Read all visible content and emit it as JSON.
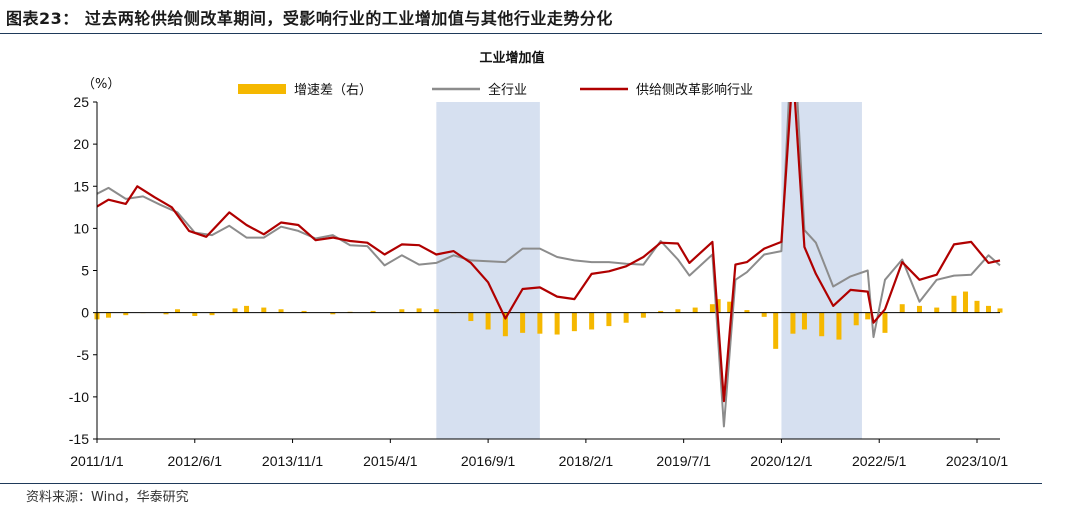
{
  "figure": {
    "title": "图表23：  过去两轮供给侧改革期间，受影响行业的工业增加值与其他行业走势分化",
    "source": "资料来源：Wind，华泰研究"
  },
  "chart_data": {
    "type": "line",
    "title": "工业增加值",
    "y_unit": "（%）",
    "ylim": [
      -15,
      25
    ],
    "yticks": [
      -15,
      -10,
      -5,
      0,
      5,
      10,
      15,
      20,
      25
    ],
    "x_tick_labels": [
      "2011/1/1",
      "2012/6/1",
      "2013/11/1",
      "2015/4/1",
      "2016/9/1",
      "2018/2/1",
      "2019/7/1",
      "2020/12/1",
      "2022/5/1",
      "2023/10/1"
    ],
    "x_range": [
      "2011-01",
      "2024-02"
    ],
    "grid": false,
    "legend_position": "top",
    "shaded_periods": [
      {
        "start": "2015-12",
        "end": "2017-06"
      },
      {
        "start": "2020-12",
        "end": "2022-02"
      }
    ],
    "series": [
      {
        "name": "增速差（右）",
        "kind": "bar",
        "color": "#F5B800",
        "points": [
          [
            "2011-01",
            -0.8
          ],
          [
            "2011-03",
            -0.6
          ],
          [
            "2011-06",
            -0.3
          ],
          [
            "2011-09",
            0.0
          ],
          [
            "2012-01",
            -0.2
          ],
          [
            "2012-03",
            0.4
          ],
          [
            "2012-06",
            -0.4
          ],
          [
            "2012-09",
            -0.3
          ],
          [
            "2013-01",
            0.5
          ],
          [
            "2013-03",
            0.8
          ],
          [
            "2013-06",
            0.6
          ],
          [
            "2013-09",
            0.4
          ],
          [
            "2014-01",
            0.2
          ],
          [
            "2014-06",
            -0.2
          ],
          [
            "2014-09",
            0.1
          ],
          [
            "2015-01",
            0.2
          ],
          [
            "2015-06",
            0.4
          ],
          [
            "2015-09",
            0.5
          ],
          [
            "2015-12",
            0.4
          ],
          [
            "2016-03",
            0.0
          ],
          [
            "2016-06",
            -1.0
          ],
          [
            "2016-09",
            -2.0
          ],
          [
            "2016-12",
            -2.8
          ],
          [
            "2017-03",
            -2.4
          ],
          [
            "2017-06",
            -2.5
          ],
          [
            "2017-09",
            -2.6
          ],
          [
            "2017-12",
            -2.2
          ],
          [
            "2018-03",
            -2.0
          ],
          [
            "2018-06",
            -1.6
          ],
          [
            "2018-09",
            -1.2
          ],
          [
            "2018-12",
            -0.6
          ],
          [
            "2019-03",
            0.2
          ],
          [
            "2019-06",
            0.4
          ],
          [
            "2019-09",
            0.6
          ],
          [
            "2019-12",
            1.0
          ],
          [
            "2020-01",
            1.6
          ],
          [
            "2020-03",
            1.3
          ],
          [
            "2020-06",
            0.3
          ],
          [
            "2020-09",
            -0.5
          ],
          [
            "2020-11",
            -4.3
          ],
          [
            "2021-02",
            -2.5
          ],
          [
            "2021-04",
            -2.0
          ],
          [
            "2021-07",
            -2.8
          ],
          [
            "2021-10",
            -3.2
          ],
          [
            "2022-01",
            -1.5
          ],
          [
            "2022-03",
            -0.8
          ],
          [
            "2022-06",
            -2.4
          ],
          [
            "2022-09",
            1.0
          ],
          [
            "2022-12",
            0.8
          ],
          [
            "2023-03",
            0.6
          ],
          [
            "2023-06",
            2.0
          ],
          [
            "2023-08",
            2.5
          ],
          [
            "2023-10",
            1.4
          ],
          [
            "2023-12",
            0.8
          ],
          [
            "2024-02",
            0.5
          ]
        ]
      },
      {
        "name": "全行业",
        "kind": "line",
        "color": "#8C8C8C",
        "points": [
          [
            "2011-01",
            14.1
          ],
          [
            "2011-03",
            14.8
          ],
          [
            "2011-06",
            13.5
          ],
          [
            "2011-09",
            13.8
          ],
          [
            "2011-12",
            12.8
          ],
          [
            "2012-03",
            11.9
          ],
          [
            "2012-06",
            9.5
          ],
          [
            "2012-09",
            9.2
          ],
          [
            "2012-12",
            10.3
          ],
          [
            "2013-03",
            8.9
          ],
          [
            "2013-06",
            8.9
          ],
          [
            "2013-09",
            10.2
          ],
          [
            "2013-12",
            9.7
          ],
          [
            "2014-03",
            8.8
          ],
          [
            "2014-06",
            9.2
          ],
          [
            "2014-09",
            8.0
          ],
          [
            "2014-12",
            7.9
          ],
          [
            "2015-03",
            5.6
          ],
          [
            "2015-06",
            6.8
          ],
          [
            "2015-09",
            5.7
          ],
          [
            "2015-12",
            5.9
          ],
          [
            "2016-03",
            6.8
          ],
          [
            "2016-06",
            6.2
          ],
          [
            "2016-09",
            6.1
          ],
          [
            "2016-12",
            6.0
          ],
          [
            "2017-03",
            7.6
          ],
          [
            "2017-06",
            7.6
          ],
          [
            "2017-09",
            6.6
          ],
          [
            "2017-12",
            6.2
          ],
          [
            "2018-03",
            6.0
          ],
          [
            "2018-06",
            6.0
          ],
          [
            "2018-09",
            5.8
          ],
          [
            "2018-12",
            5.7
          ],
          [
            "2019-03",
            8.5
          ],
          [
            "2019-06",
            6.3
          ],
          [
            "2019-08",
            4.4
          ],
          [
            "2019-12",
            6.9
          ],
          [
            "2020-02",
            -13.5
          ],
          [
            "2020-04",
            3.9
          ],
          [
            "2020-06",
            4.8
          ],
          [
            "2020-09",
            6.9
          ],
          [
            "2020-12",
            7.3
          ],
          [
            "2021-02",
            35.1
          ],
          [
            "2021-04",
            9.8
          ],
          [
            "2021-06",
            8.3
          ],
          [
            "2021-09",
            3.1
          ],
          [
            "2021-12",
            4.3
          ],
          [
            "2022-03",
            5.0
          ],
          [
            "2022-04",
            -2.9
          ],
          [
            "2022-06",
            3.9
          ],
          [
            "2022-09",
            6.3
          ],
          [
            "2022-12",
            1.3
          ],
          [
            "2023-03",
            3.9
          ],
          [
            "2023-06",
            4.4
          ],
          [
            "2023-09",
            4.5
          ],
          [
            "2023-12",
            6.8
          ],
          [
            "2024-02",
            5.6
          ]
        ]
      },
      {
        "name": "供给侧改革影响行业",
        "kind": "line",
        "color": "#B00000",
        "points": [
          [
            "2011-01",
            12.6
          ],
          [
            "2011-03",
            13.4
          ],
          [
            "2011-06",
            12.9
          ],
          [
            "2011-08",
            15.0
          ],
          [
            "2011-11",
            13.7
          ],
          [
            "2012-02",
            12.5
          ],
          [
            "2012-05",
            9.7
          ],
          [
            "2012-08",
            9.0
          ],
          [
            "2012-12",
            11.9
          ],
          [
            "2013-03",
            10.4
          ],
          [
            "2013-06",
            9.3
          ],
          [
            "2013-09",
            10.7
          ],
          [
            "2013-12",
            10.4
          ],
          [
            "2014-03",
            8.6
          ],
          [
            "2014-06",
            8.9
          ],
          [
            "2014-09",
            8.5
          ],
          [
            "2014-12",
            8.3
          ],
          [
            "2015-03",
            6.9
          ],
          [
            "2015-06",
            8.1
          ],
          [
            "2015-09",
            8.0
          ],
          [
            "2015-12",
            6.9
          ],
          [
            "2016-03",
            7.3
          ],
          [
            "2016-06",
            5.9
          ],
          [
            "2016-09",
            3.6
          ],
          [
            "2016-12",
            -0.7
          ],
          [
            "2017-03",
            2.8
          ],
          [
            "2017-06",
            3.0
          ],
          [
            "2017-09",
            1.9
          ],
          [
            "2017-12",
            1.6
          ],
          [
            "2018-03",
            4.6
          ],
          [
            "2018-06",
            4.9
          ],
          [
            "2018-09",
            5.5
          ],
          [
            "2018-12",
            6.6
          ],
          [
            "2019-03",
            8.3
          ],
          [
            "2019-06",
            8.2
          ],
          [
            "2019-08",
            5.9
          ],
          [
            "2019-12",
            8.4
          ],
          [
            "2020-02",
            -10.5
          ],
          [
            "2020-04",
            5.7
          ],
          [
            "2020-06",
            6.0
          ],
          [
            "2020-09",
            7.6
          ],
          [
            "2020-12",
            8.4
          ],
          [
            "2021-02",
            28.9
          ],
          [
            "2021-04",
            7.8
          ],
          [
            "2021-06",
            4.6
          ],
          [
            "2021-09",
            0.8
          ],
          [
            "2021-12",
            2.7
          ],
          [
            "2022-03",
            2.5
          ],
          [
            "2022-04",
            -1.2
          ],
          [
            "2022-06",
            0.4
          ],
          [
            "2022-09",
            6.0
          ],
          [
            "2022-12",
            3.9
          ],
          [
            "2023-03",
            4.5
          ],
          [
            "2023-06",
            8.1
          ],
          [
            "2023-09",
            8.4
          ],
          [
            "2023-12",
            5.9
          ],
          [
            "2024-02",
            6.2
          ]
        ]
      }
    ]
  }
}
